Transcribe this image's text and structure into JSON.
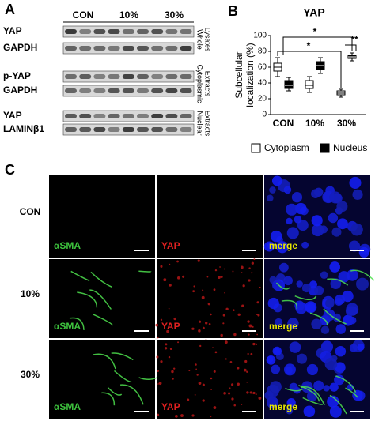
{
  "panel_a": {
    "label": "A",
    "columns": [
      "CON",
      "10%",
      "30%"
    ],
    "rows": [
      "YAP",
      "GAPDH",
      "p-YAP",
      "GAPDH",
      "YAP",
      "LAMINβ1"
    ],
    "groups": [
      [
        "Whole",
        "Lysates"
      ],
      [
        "Cytoplasmic",
        "Extracts"
      ],
      [
        "Nuclear",
        "Extracts"
      ]
    ]
  },
  "panel_b": {
    "label": "B",
    "chart_data": {
      "type": "box",
      "title": "YAP",
      "y_label": [
        "Subcellular",
        "localization (%)"
      ],
      "categories": [
        "CON",
        "10%",
        "30%"
      ],
      "series": [
        {
          "name": "Cytoplasm",
          "color": "#ffffff",
          "values": [
            [
              48,
              55,
              60,
              65,
              72
            ],
            [
              28,
              33,
              37,
              43,
              48
            ],
            [
              22,
              25,
              27,
              30,
              32
            ]
          ]
        },
        {
          "name": "Nucleus",
          "color": "#000000",
          "values": [
            [
              30,
              33,
              37,
              43,
              47
            ],
            [
              52,
              57,
              62,
              67,
              72
            ],
            [
              68,
              71,
              73,
              75,
              78
            ]
          ]
        }
      ],
      "ylim": [
        0,
        100
      ],
      "yticks": [
        0,
        20,
        40,
        60,
        80,
        100
      ],
      "annotations": [
        "*",
        "*",
        "**"
      ]
    }
  },
  "panel_c": {
    "label": "C",
    "rows": [
      "CON",
      "10%",
      "30%"
    ],
    "channels": [
      "αSMA",
      "YAP",
      "merge"
    ]
  }
}
